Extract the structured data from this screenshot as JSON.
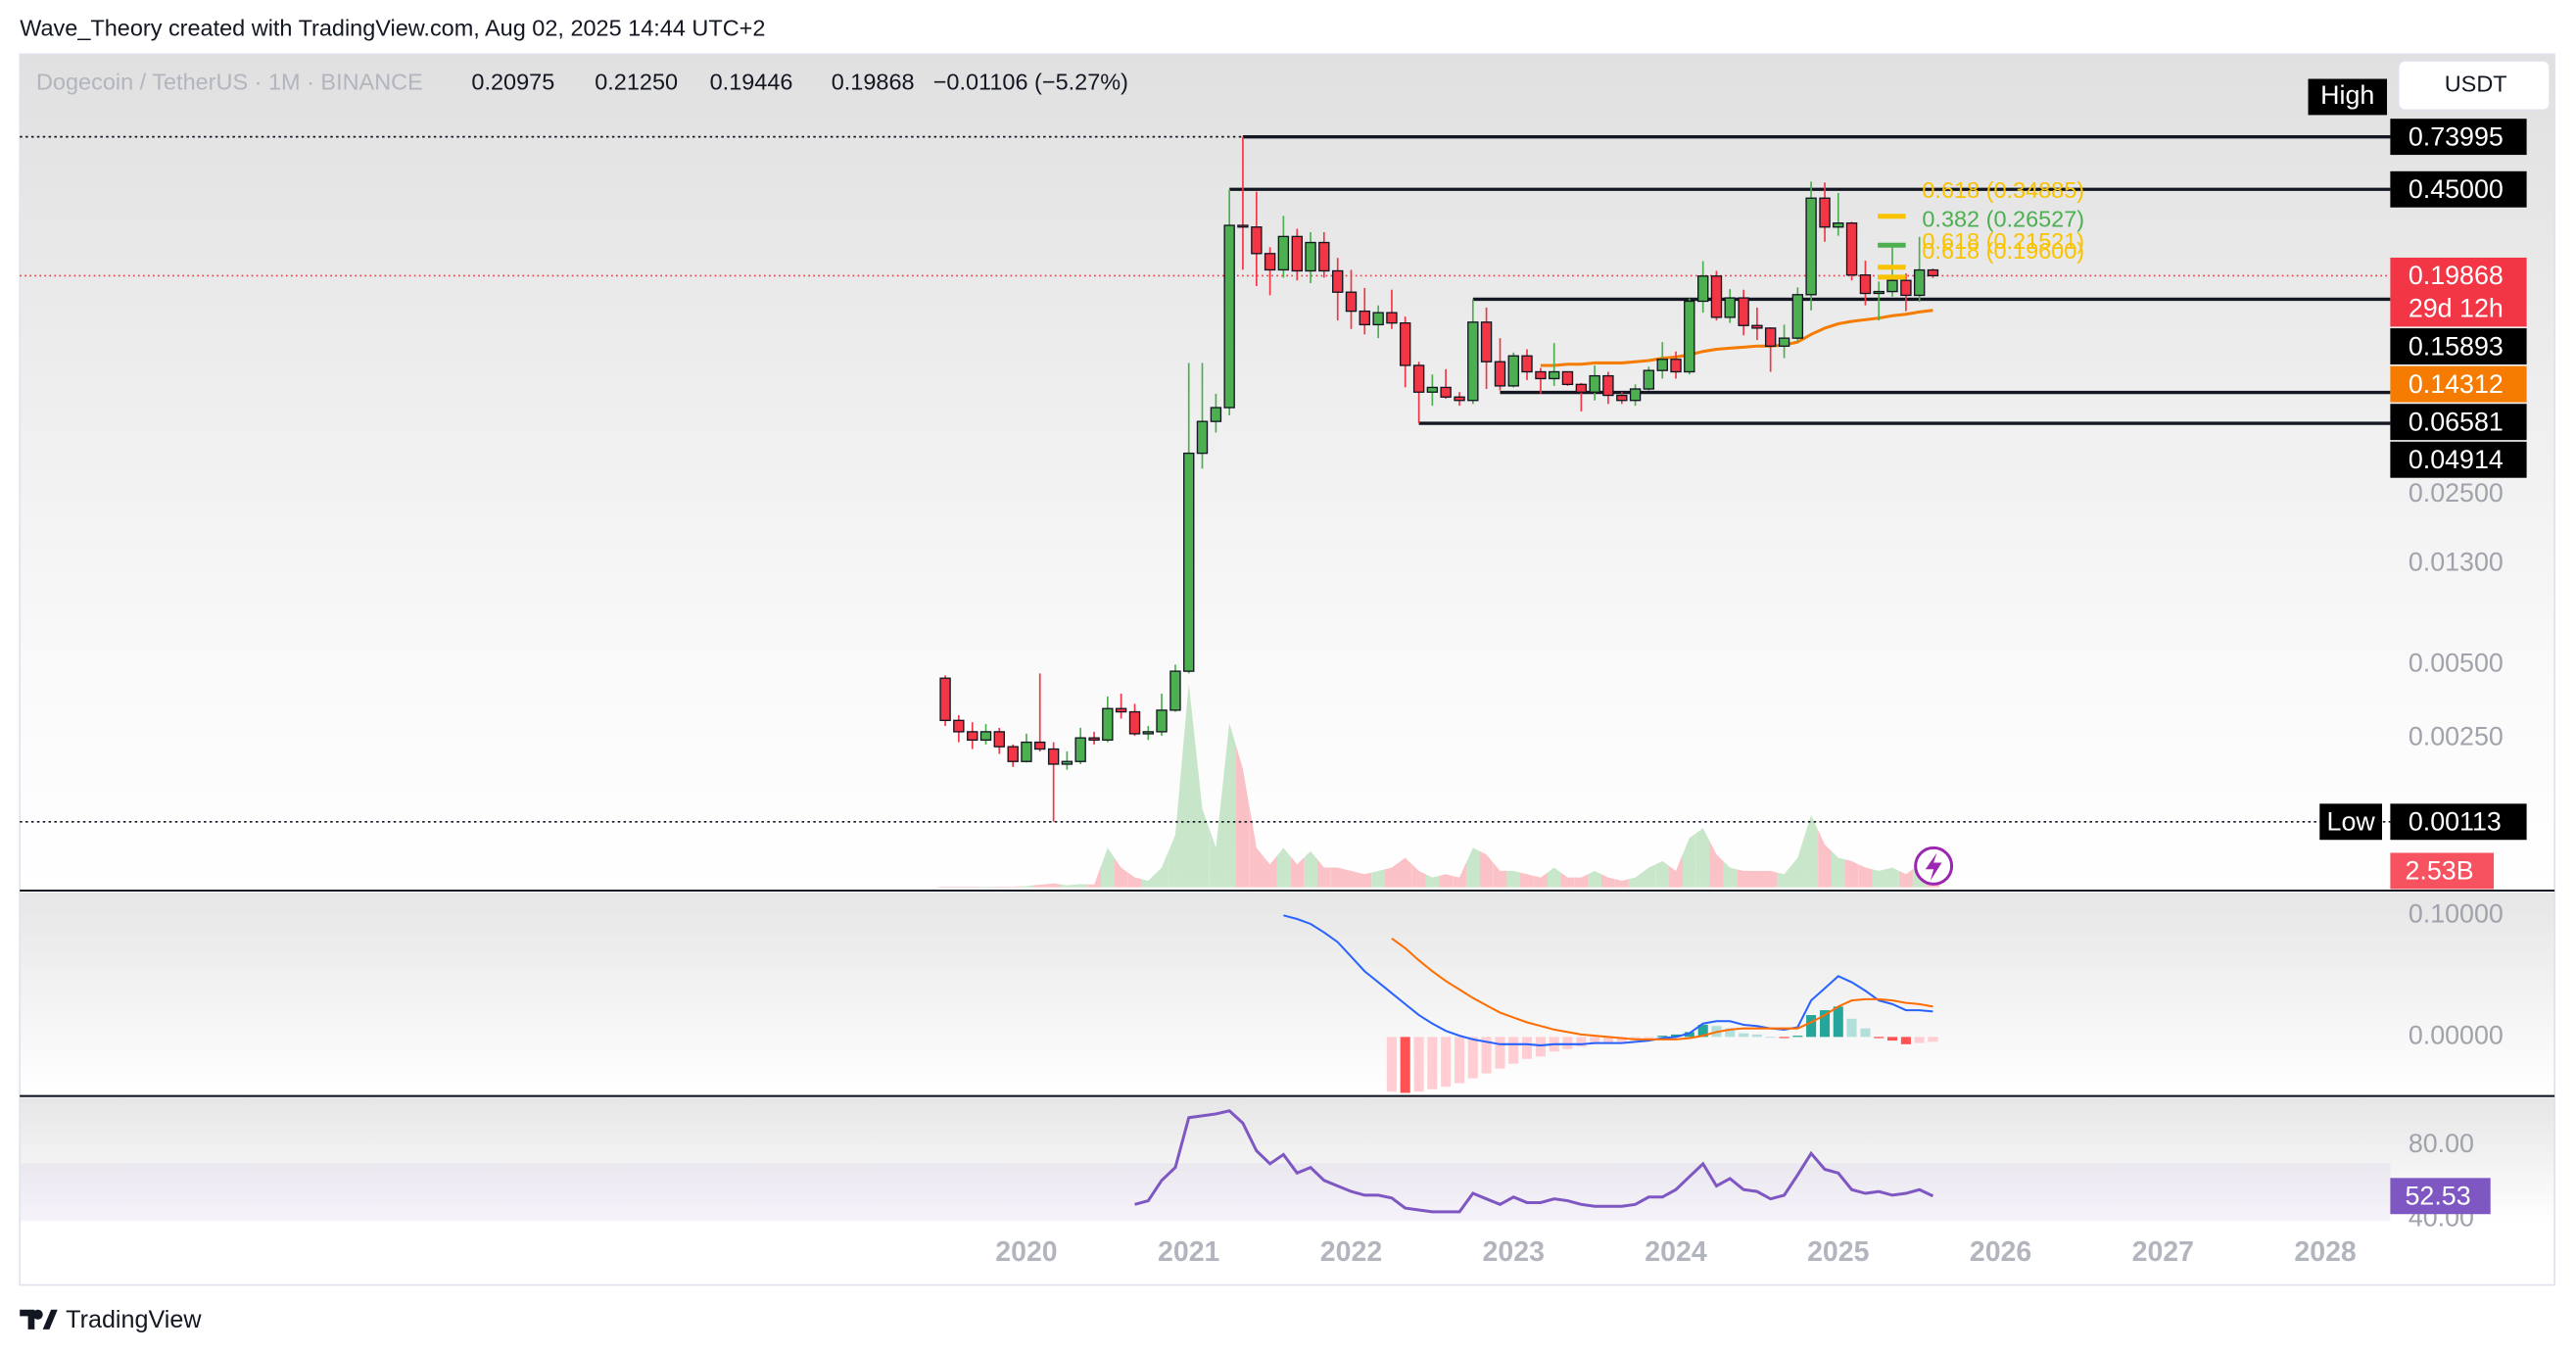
{
  "header": {
    "credit": "Wave_Theory created with TradingView.com, Aug 02, 2025 14:44 UTC+2"
  },
  "legend": {
    "symbol": "Dogecoin / TetherUS · 1M · BINANCE",
    "open": "0.20975",
    "high": "0.21250",
    "low": "0.19446",
    "close": "0.19868",
    "change": "−0.01106 (−5.27%)"
  },
  "currency_button": "USDT",
  "footer": {
    "brand": "TradingView"
  },
  "chart_data": {
    "type": "candlestick",
    "log_scale": true,
    "grid": false,
    "xlim": [
      2013.8,
      2028.4
    ],
    "xticks": [
      2020,
      2021,
      2022,
      2023,
      2024,
      2025,
      2026,
      2027,
      2028
    ],
    "ylim": [
      0.000589,
      1.617
    ],
    "yticks": [
      {
        "value": 0.025,
        "label": "0.02500"
      },
      {
        "value": 0.013,
        "label": "0.01300"
      },
      {
        "value": 0.005,
        "label": "0.00500"
      },
      {
        "value": 0.0025,
        "label": "0.00250"
      }
    ],
    "up_color": "#4caf50",
    "down_color": "#f23645",
    "high_label": "High",
    "low_label": "Low",
    "countdown": "29d 12h",
    "x": [
      2019.5,
      2019.583,
      2019.667,
      2019.75,
      2019.833,
      2019.917,
      2020,
      2020.083,
      2020.167,
      2020.25,
      2020.333,
      2020.417,
      2020.5,
      2020.583,
      2020.667,
      2020.75,
      2020.833,
      2020.917,
      2021,
      2021.083,
      2021.167,
      2021.25,
      2021.333,
      2021.417,
      2021.5,
      2021.583,
      2021.667,
      2021.75,
      2021.833,
      2021.917,
      2022,
      2022.083,
      2022.167,
      2022.25,
      2022.333,
      2022.417,
      2022.5,
      2022.583,
      2022.667,
      2022.75,
      2022.833,
      2022.917,
      2023,
      2023.083,
      2023.167,
      2023.25,
      2023.333,
      2023.417,
      2023.5,
      2023.583,
      2023.667,
      2023.75,
      2023.833,
      2023.917,
      2024,
      2024.083,
      2024.167,
      2024.25,
      2024.333,
      2024.417,
      2024.5,
      2024.583,
      2024.667,
      2024.75,
      2024.833,
      2024.917,
      2025,
      2025.083,
      2025.167,
      2025.25,
      2025.333,
      2025.417,
      2025.5,
      2025.583
    ],
    "ohlc": {
      "open": [
        0.0044,
        0.00295,
        0.00265,
        0.00245,
        0.00265,
        0.0023,
        0.002,
        0.0024,
        0.00225,
        0.00195,
        0.002,
        0.0025,
        0.00245,
        0.0033,
        0.0032,
        0.0026,
        0.00265,
        0.00325,
        0.0047,
        0.037,
        0.05,
        0.057,
        0.32,
        0.315,
        0.245,
        0.21,
        0.288,
        0.208,
        0.272,
        0.208,
        0.17,
        0.142,
        0.125,
        0.14,
        0.127,
        0.085,
        0.066,
        0.069,
        0.063,
        0.061,
        0.128,
        0.088,
        0.07,
        0.093,
        0.08,
        0.075,
        0.08,
        0.071,
        0.066,
        0.077,
        0.064,
        0.061,
        0.068,
        0.081,
        0.09,
        0.08,
        0.156,
        0.198,
        0.134,
        0.161,
        0.124,
        0.121,
        0.102,
        0.11,
        0.166,
        0.414,
        0.315,
        0.327,
        0.2,
        0.168,
        0.171,
        0.19,
        0.165,
        0.20975
      ],
      "high": [
        0.00452,
        0.0031,
        0.0029,
        0.00285,
        0.00275,
        0.00235,
        0.0026,
        0.0046,
        0.0024,
        0.0022,
        0.00275,
        0.00265,
        0.0037,
        0.0038,
        0.00345,
        0.0028,
        0.0038,
        0.005,
        0.087,
        0.087,
        0.065,
        0.45,
        0.73995,
        0.44,
        0.26,
        0.35,
        0.31,
        0.3,
        0.3,
        0.235,
        0.21,
        0.177,
        0.15,
        0.174,
        0.135,
        0.088,
        0.078,
        0.082,
        0.066,
        0.15893,
        0.147,
        0.11,
        0.096,
        0.099,
        0.083,
        0.105,
        0.08,
        0.072,
        0.085,
        0.08,
        0.066,
        0.071,
        0.084,
        0.106,
        0.097,
        0.16,
        0.228,
        0.208,
        0.175,
        0.174,
        0.147,
        0.122,
        0.125,
        0.178,
        0.484,
        0.48,
        0.435,
        0.331,
        0.229,
        0.188,
        0.26,
        0.203,
        0.287,
        0.2125
      ],
      "low": [
        0.0028,
        0.0024,
        0.00225,
        0.00235,
        0.00215,
        0.0019,
        0.00198,
        0.0022,
        0.00113,
        0.00185,
        0.00195,
        0.00235,
        0.0024,
        0.003,
        0.00255,
        0.00245,
        0.00255,
        0.0032,
        0.0046,
        0.032,
        0.045,
        0.053,
        0.21,
        0.18,
        0.165,
        0.195,
        0.19,
        0.185,
        0.195,
        0.13,
        0.12,
        0.114,
        0.11,
        0.12,
        0.069,
        0.04914,
        0.058,
        0.062,
        0.058,
        0.059,
        0.068,
        0.067,
        0.069,
        0.074,
        0.065,
        0.07,
        0.07,
        0.055,
        0.061,
        0.059,
        0.059,
        0.058,
        0.067,
        0.075,
        0.075,
        0.078,
        0.14,
        0.13,
        0.127,
        0.113,
        0.108,
        0.08,
        0.091,
        0.106,
        0.143,
        0.274,
        0.29,
        0.19,
        0.15,
        0.13,
        0.163,
        0.142,
        0.155,
        0.19446
      ],
      "close": [
        0.00295,
        0.00265,
        0.00245,
        0.00265,
        0.0023,
        0.002,
        0.0024,
        0.00225,
        0.00195,
        0.002,
        0.0025,
        0.00245,
        0.0033,
        0.0032,
        0.0026,
        0.00265,
        0.00325,
        0.0047,
        0.037,
        0.05,
        0.057,
        0.32,
        0.315,
        0.245,
        0.21,
        0.288,
        0.208,
        0.272,
        0.208,
        0.17,
        0.142,
        0.125,
        0.14,
        0.127,
        0.085,
        0.066,
        0.069,
        0.063,
        0.061,
        0.128,
        0.088,
        0.07,
        0.093,
        0.08,
        0.075,
        0.08,
        0.071,
        0.066,
        0.077,
        0.064,
        0.061,
        0.068,
        0.081,
        0.09,
        0.08,
        0.156,
        0.198,
        0.134,
        0.161,
        0.124,
        0.121,
        0.102,
        0.11,
        0.166,
        0.414,
        0.315,
        0.327,
        0.2,
        0.168,
        0.171,
        0.19,
        0.165,
        0.20975,
        0.19868
      ]
    },
    "moving_average": {
      "color": "#f57c00",
      "values": [
        null,
        null,
        null,
        null,
        null,
        null,
        null,
        null,
        null,
        null,
        null,
        null,
        null,
        null,
        null,
        null,
        null,
        null,
        null,
        null,
        null,
        null,
        null,
        null,
        null,
        null,
        null,
        null,
        null,
        null,
        null,
        null,
        null,
        null,
        null,
        null,
        null,
        null,
        null,
        null,
        null,
        null,
        null,
        null,
        0.085,
        0.085,
        0.086,
        0.086,
        0.087,
        0.087,
        0.087,
        0.088,
        0.089,
        0.091,
        0.092,
        0.094,
        0.097,
        0.099,
        0.1,
        0.101,
        0.102,
        0.102,
        0.103,
        0.106,
        0.114,
        0.121,
        0.126,
        0.129,
        0.131,
        0.133,
        0.136,
        0.138,
        0.141,
        0.14312
      ]
    },
    "levels": [
      {
        "price": 0.73995,
        "x": 2021.333
      },
      {
        "price": 0.45,
        "label": "0.45000",
        "x": 2021.25
      },
      {
        "price": 0.15893,
        "x": 2022.75
      },
      {
        "price": 0.06581,
        "x": 2022.917
      },
      {
        "price": 0.04914,
        "x": 2022.417
      }
    ],
    "annotations": [
      {
        "text": "0.618 (0.34885)",
        "price": 0.34885,
        "color": "#f9c300"
      },
      {
        "text": "0.382 (0.26527)",
        "price": 0.26527,
        "color": "#4caf50"
      },
      {
        "text": "0.618 (0.21521)",
        "price": 0.21521,
        "color": "#f9c300"
      },
      {
        "text": "0.618 (0.19600)",
        "price": 0.196,
        "color": "#f9c300"
      }
    ],
    "volume": {
      "ylim": [
        0,
        127
      ],
      "last_label": "2.53B",
      "values": [
        0.1,
        0.1,
        0.1,
        0.1,
        0.1,
        0.1,
        0.2,
        0.4,
        0.6,
        0.3,
        0.5,
        0.4,
        6.0,
        3.0,
        1.5,
        1.0,
        3.0,
        8.0,
        31.0,
        12.0,
        6.0,
        25.0,
        18.0,
        6.0,
        3.5,
        6.0,
        3.5,
        5.5,
        3.0,
        3.0,
        2.5,
        2.0,
        2.5,
        3.0,
        4.5,
        2.5,
        1.5,
        2.0,
        1.5,
        6.0,
        5.0,
        2.5,
        2.5,
        2.0,
        1.5,
        3.0,
        1.5,
        1.5,
        2.5,
        1.5,
        1.0,
        1.5,
        3.0,
        4.0,
        2.5,
        7.5,
        9.0,
        5.0,
        3.0,
        2.5,
        2.5,
        2.5,
        2.0,
        4.5,
        11.0,
        6.5,
        4.5,
        4.0,
        3.0,
        2.5,
        3.0,
        2.0,
        3.5,
        2.53
      ]
    },
    "macd": {
      "ylim": [
        -0.0486,
        0.119
      ],
      "yticks": [
        {
          "value": 0.1,
          "label": "0.10000"
        },
        {
          "value": 0,
          "label": "0.00000"
        }
      ],
      "macd_color": "#2962ff",
      "signal_color": "#ff6d00",
      "macd": [
        null,
        null,
        null,
        null,
        null,
        null,
        null,
        null,
        null,
        null,
        null,
        null,
        null,
        null,
        null,
        null,
        null,
        null,
        null,
        null,
        null,
        null,
        null,
        null,
        null,
        0.1,
        0.097,
        0.093,
        0.086,
        0.078,
        0.066,
        0.054,
        0.045,
        0.036,
        0.027,
        0.018,
        0.011,
        0.005,
        0.001,
        -0.002,
        -0.004,
        -0.006,
        -0.006,
        -0.006,
        -0.007,
        -0.006,
        -0.006,
        -0.006,
        -0.005,
        -0.005,
        -0.005,
        -0.004,
        -0.003,
        -0.001,
        0.0,
        0.003,
        0.011,
        0.013,
        0.013,
        0.01,
        0.009,
        0.007,
        0.006,
        0.008,
        0.03,
        0.04,
        0.05,
        0.045,
        0.038,
        0.03,
        0.027,
        0.022,
        0.022,
        0.021
      ],
      "signal": [
        null,
        null,
        null,
        null,
        null,
        null,
        null,
        null,
        null,
        null,
        null,
        null,
        null,
        null,
        null,
        null,
        null,
        null,
        null,
        null,
        null,
        null,
        null,
        null,
        null,
        null,
        null,
        null,
        null,
        null,
        null,
        null,
        null,
        0.081,
        0.073,
        0.063,
        0.054,
        0.046,
        0.039,
        0.032,
        0.026,
        0.02,
        0.016,
        0.012,
        0.009,
        0.006,
        0.004,
        0.002,
        0.001,
        0.0,
        -0.001,
        -0.002,
        -0.002,
        -0.002,
        -0.002,
        -0.001,
        0.001,
        0.004,
        0.006,
        0.007,
        0.007,
        0.007,
        0.007,
        0.007,
        0.012,
        0.018,
        0.025,
        0.03,
        0.031,
        0.031,
        0.03,
        0.028,
        0.027,
        0.025
      ],
      "histogram": [
        null,
        null,
        null,
        null,
        null,
        null,
        null,
        null,
        null,
        null,
        null,
        null,
        null,
        null,
        null,
        null,
        null,
        null,
        null,
        null,
        null,
        null,
        null,
        null,
        null,
        null,
        null,
        null,
        null,
        null,
        null,
        null,
        null,
        -0.045,
        -0.046,
        -0.045,
        -0.043,
        -0.041,
        -0.038,
        -0.034,
        -0.03,
        -0.026,
        -0.022,
        -0.018,
        -0.016,
        -0.012,
        -0.01,
        -0.008,
        -0.006,
        -0.005,
        -0.004,
        -0.002,
        -0.001,
        0.001,
        0.002,
        0.004,
        0.01,
        0.009,
        0.007,
        0.003,
        0.002,
        0.0,
        -0.001,
        0.001,
        0.018,
        0.022,
        0.025,
        0.015,
        0.007,
        -0.001,
        -0.003,
        -0.006,
        -0.005,
        -0.004
      ]
    },
    "rsi": {
      "ylim": [
        37.3,
        105.8
      ],
      "yticks": [
        {
          "value": 80,
          "label": "80.00"
        },
        {
          "value": 40,
          "label": "40.00"
        }
      ],
      "color": "#7e57c2",
      "values": [
        null,
        null,
        null,
        null,
        null,
        null,
        null,
        null,
        null,
        null,
        null,
        null,
        null,
        null,
        48,
        50,
        61,
        68,
        95,
        96,
        97,
        98.7,
        92,
        77,
        70,
        75,
        65,
        68,
        61,
        58,
        55,
        53,
        53,
        51.5,
        46,
        45,
        44,
        44,
        44,
        54,
        51,
        48,
        52,
        49,
        49,
        51,
        50,
        48,
        47,
        47,
        47,
        48,
        52,
        52,
        56,
        63,
        70,
        58,
        62,
        56,
        55,
        51,
        53,
        64,
        75.6,
        67,
        65,
        56,
        54,
        55,
        53,
        54,
        56,
        52.53
      ]
    }
  }
}
